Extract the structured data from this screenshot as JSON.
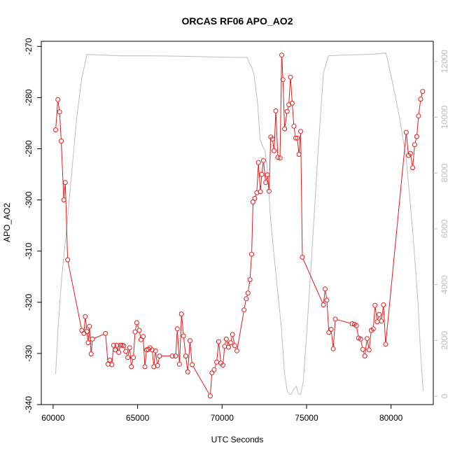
{
  "chart_data": {
    "type": "scatter",
    "title": "ORCAS RF06 APO_AO2",
    "xlabel": "UTC Seconds",
    "ylabel": "APO_AO2",
    "xlim": [
      59300,
      82500
    ],
    "ylim": [
      -340,
      -269
    ],
    "x_ticks": [
      60000,
      65000,
      70000,
      75000,
      80000
    ],
    "y_ticks": [
      -340,
      -330,
      -320,
      -310,
      -300,
      -290,
      -280,
      -270
    ],
    "y2lim": [
      -300,
      12720
    ],
    "y2_ticks": [
      0,
      2000,
      4000,
      6000,
      8000,
      10000,
      12000
    ],
    "grid": false,
    "series": [
      {
        "color": "#e41a1c",
        "marker": "circle",
        "line": true,
        "points": [
          [
            60150,
            -286.3
          ],
          [
            60280,
            -280.4
          ],
          [
            60380,
            -282.8
          ],
          [
            60480,
            -288.5
          ],
          [
            60630,
            -300.0
          ],
          [
            60720,
            -296.6
          ],
          [
            60860,
            -311.7
          ],
          [
            61700,
            -325.5
          ],
          [
            61820,
            -326.1
          ],
          [
            61900,
            -322.8
          ],
          [
            62000,
            -325.7
          ],
          [
            62070,
            -327.9
          ],
          [
            62150,
            -324.7
          ],
          [
            62250,
            -330.1
          ],
          [
            62330,
            -327.2
          ],
          [
            63100,
            -326.1
          ],
          [
            63250,
            -332.1
          ],
          [
            63350,
            -331.3
          ],
          [
            63480,
            -332.2
          ],
          [
            63580,
            -328.4
          ],
          [
            63680,
            -329.3
          ],
          [
            63780,
            -328.4
          ],
          [
            63880,
            -329.8
          ],
          [
            63980,
            -328.4
          ],
          [
            64080,
            -328.4
          ],
          [
            64180,
            -328.5
          ],
          [
            64300,
            -329.6
          ],
          [
            64420,
            -330.8
          ],
          [
            64530,
            -328.9
          ],
          [
            64630,
            -332.6
          ],
          [
            64750,
            -330.8
          ],
          [
            64850,
            -325.8
          ],
          [
            64950,
            -324.0
          ],
          [
            65100,
            -325.5
          ],
          [
            65200,
            -327.3
          ],
          [
            65330,
            -326.7
          ],
          [
            65430,
            -332.6
          ],
          [
            65530,
            -329.3
          ],
          [
            65630,
            -329.2
          ],
          [
            65730,
            -328.9
          ],
          [
            65860,
            -329.3
          ],
          [
            65960,
            -332.6
          ],
          [
            66060,
            -329.5
          ],
          [
            66180,
            -332.4
          ],
          [
            66300,
            -330.5
          ],
          [
            67050,
            -330.5
          ],
          [
            67250,
            -330.5
          ],
          [
            67350,
            -325.2
          ],
          [
            67480,
            -332.1
          ],
          [
            67600,
            -322.3
          ],
          [
            67720,
            -326.6
          ],
          [
            67850,
            -330.5
          ],
          [
            67970,
            -333.6
          ],
          [
            68100,
            -327.5
          ],
          [
            68230,
            -332.2
          ],
          [
            69300,
            -338.3
          ],
          [
            69400,
            -333.8
          ],
          [
            69530,
            -333.2
          ],
          [
            69680,
            -331.7
          ],
          [
            69800,
            -327.7
          ],
          [
            69930,
            -331.9
          ],
          [
            70050,
            -332.3
          ],
          [
            70150,
            -328.6
          ],
          [
            70250,
            -327.2
          ],
          [
            70380,
            -328.8
          ],
          [
            70500,
            -327.9
          ],
          [
            70620,
            -326.3
          ],
          [
            70750,
            -328.5
          ],
          [
            70880,
            -329.5
          ],
          [
            71300,
            -321.5
          ],
          [
            71430,
            -319.3
          ],
          [
            71530,
            -318.2
          ],
          [
            71650,
            -315.6
          ],
          [
            71750,
            -310.6
          ],
          [
            71830,
            -300.4
          ],
          [
            71930,
            -299.7
          ],
          [
            72050,
            -298.6
          ],
          [
            72150,
            -292.7
          ],
          [
            72270,
            -298.4
          ],
          [
            72350,
            -295.0
          ],
          [
            72450,
            -292.3
          ],
          [
            72580,
            -296.6
          ],
          [
            72680,
            -295.1
          ],
          [
            72780,
            -298.3
          ],
          [
            72880,
            -287.7
          ],
          [
            72980,
            -288.1
          ],
          [
            73080,
            -290.4
          ],
          [
            73180,
            -282.6
          ],
          [
            73300,
            -291.7
          ],
          [
            73430,
            -291.8
          ],
          [
            73530,
            -271.7
          ],
          [
            73600,
            -276.5
          ],
          [
            73700,
            -286.1
          ],
          [
            73850,
            -282.7
          ],
          [
            73950,
            -281.4
          ],
          [
            74050,
            -276.0
          ],
          [
            74150,
            -281.1
          ],
          [
            74250,
            -285.6
          ],
          [
            74350,
            -287.9
          ],
          [
            74450,
            -287.9
          ],
          [
            74550,
            -291.1
          ],
          [
            74650,
            -286.6
          ],
          [
            74750,
            -311.2
          ],
          [
            76000,
            -320.5
          ],
          [
            76100,
            -317.4
          ],
          [
            76200,
            -319.6
          ],
          [
            76320,
            -325.9
          ],
          [
            76450,
            -325.3
          ],
          [
            76580,
            -329.1
          ],
          [
            76700,
            -323.3
          ],
          [
            77700,
            -324.2
          ],
          [
            77830,
            -324.3
          ],
          [
            77950,
            -324.6
          ],
          [
            78080,
            -327.0
          ],
          [
            78200,
            -327.2
          ],
          [
            78330,
            -329.2
          ],
          [
            78450,
            -330.5
          ],
          [
            78580,
            -327.1
          ],
          [
            78700,
            -329.3
          ],
          [
            78830,
            -325.5
          ],
          [
            78950,
            -325.2
          ],
          [
            79050,
            -320.6
          ],
          [
            79180,
            -323.8
          ],
          [
            79300,
            -322.4
          ],
          [
            79430,
            -323.7
          ],
          [
            79550,
            -320.5
          ],
          [
            79680,
            -328.2
          ],
          [
            80900,
            -286.8
          ],
          [
            81030,
            -291.3
          ],
          [
            81150,
            -290.9
          ],
          [
            81280,
            -293.7
          ],
          [
            81400,
            -289.2
          ],
          [
            81520,
            -287.6
          ],
          [
            81630,
            -283.6
          ],
          [
            81750,
            -280.3
          ],
          [
            81870,
            -278.8
          ]
        ]
      },
      {
        "color": "#bebebe",
        "axis": "right",
        "marker": "none",
        "line": true,
        "points": [
          [
            60150,
            800
          ],
          [
            60300,
            2500
          ],
          [
            60500,
            4200
          ],
          [
            60800,
            6000
          ],
          [
            61100,
            8000
          ],
          [
            61400,
            10000
          ],
          [
            61700,
            11400
          ],
          [
            62000,
            12250
          ],
          [
            64000,
            12200
          ],
          [
            66000,
            12200
          ],
          [
            68000,
            12180
          ],
          [
            70000,
            12150
          ],
          [
            71500,
            12140
          ],
          [
            71600,
            11950
          ],
          [
            71750,
            11800
          ],
          [
            71900,
            11500
          ],
          [
            72100,
            10500
          ],
          [
            72250,
            9200
          ],
          [
            72400,
            8950
          ],
          [
            72550,
            8800
          ],
          [
            72700,
            8000
          ],
          [
            72850,
            6500
          ],
          [
            73000,
            5500
          ],
          [
            73250,
            4000
          ],
          [
            73500,
            2500
          ],
          [
            73700,
            800
          ],
          [
            73850,
            200
          ],
          [
            74000,
            60
          ],
          [
            74100,
            80
          ],
          [
            74250,
            250
          ],
          [
            74400,
            350
          ],
          [
            74500,
            100
          ],
          [
            74650,
            60
          ],
          [
            74800,
            500
          ],
          [
            75000,
            2200
          ],
          [
            75300,
            5000
          ],
          [
            75650,
            8500
          ],
          [
            76000,
            11600
          ],
          [
            76300,
            12200
          ],
          [
            77000,
            12220
          ],
          [
            78000,
            12240
          ],
          [
            79000,
            12260
          ],
          [
            79700,
            12300
          ],
          [
            80100,
            11200
          ],
          [
            80500,
            10000
          ],
          [
            80900,
            8500
          ],
          [
            81300,
            5800
          ],
          [
            81600,
            3300
          ],
          [
            81750,
            1500
          ],
          [
            81900,
            200
          ]
        ]
      }
    ]
  }
}
